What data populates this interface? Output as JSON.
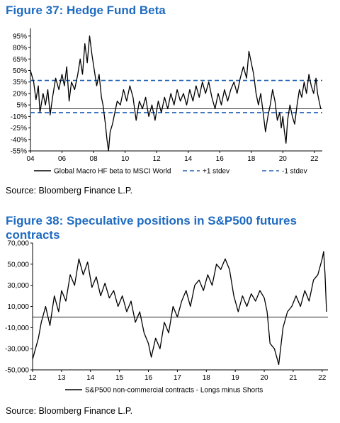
{
  "figure1": {
    "title": "Figure 37: Hedge Fund Beta",
    "source": "Source: Bloomberg Finance L.P."
  },
  "figure2": {
    "title": "Figure 38: Speculative positions in S&P500 futures contracts",
    "source": "Source: Bloomberg Finance L.P."
  },
  "colors": {
    "title": "#1f6bc0",
    "series": "#000000",
    "stdev": "#1f5fb0"
  },
  "chart_data": [
    {
      "type": "line",
      "title": "",
      "y_tick_labels": [
        "95%",
        "80%",
        "65%",
        "50%",
        "35%",
        "20%",
        "5%",
        "-10%",
        "-25%",
        "-40%",
        "-55%"
      ],
      "x_tick_labels": [
        "04",
        "06",
        "08",
        "10",
        "12",
        "14",
        "16",
        "18",
        "20",
        "22"
      ],
      "ylim": [
        -55,
        105
      ],
      "xlim": [
        2004,
        2022.5
      ],
      "hlines": [
        {
          "name": "+1 stdev",
          "value": 37
        },
        {
          "name": "-1 stdev",
          "value": -5
        },
        {
          "name": "",
          "value": 0
        }
      ],
      "legend": [
        "Global Macro HF beta to MSCI World",
        "+1 stdev",
        "-1 stdev"
      ],
      "legend_position": "bottom",
      "series": [
        {
          "name": "Global Macro HF beta to MSCI World",
          "points": [
            [
              2004.0,
              50
            ],
            [
              2004.2,
              35
            ],
            [
              2004.35,
              12
            ],
            [
              2004.5,
              30
            ],
            [
              2004.6,
              -5
            ],
            [
              2004.8,
              20
            ],
            [
              2004.95,
              5
            ],
            [
              2005.1,
              25
            ],
            [
              2005.25,
              -8
            ],
            [
              2005.4,
              15
            ],
            [
              2005.6,
              40
            ],
            [
              2005.8,
              25
            ],
            [
              2006.0,
              45
            ],
            [
              2006.15,
              30
            ],
            [
              2006.3,
              55
            ],
            [
              2006.45,
              10
            ],
            [
              2006.6,
              35
            ],
            [
              2006.8,
              25
            ],
            [
              2007.0,
              45
            ],
            [
              2007.15,
              65
            ],
            [
              2007.3,
              45
            ],
            [
              2007.45,
              85
            ],
            [
              2007.6,
              60
            ],
            [
              2007.75,
              95
            ],
            [
              2007.9,
              70
            ],
            [
              2008.05,
              50
            ],
            [
              2008.2,
              30
            ],
            [
              2008.35,
              45
            ],
            [
              2008.5,
              15
            ],
            [
              2008.6,
              5
            ],
            [
              2008.75,
              -20
            ],
            [
              2008.85,
              -40
            ],
            [
              2008.95,
              -55
            ],
            [
              2009.05,
              -30
            ],
            [
              2009.2,
              -20
            ],
            [
              2009.35,
              -5
            ],
            [
              2009.5,
              10
            ],
            [
              2009.7,
              5
            ],
            [
              2009.9,
              25
            ],
            [
              2010.1,
              10
            ],
            [
              2010.3,
              30
            ],
            [
              2010.5,
              15
            ],
            [
              2010.7,
              -15
            ],
            [
              2010.9,
              10
            ],
            [
              2011.1,
              0
            ],
            [
              2011.3,
              15
            ],
            [
              2011.5,
              -10
            ],
            [
              2011.7,
              5
            ],
            [
              2011.9,
              -15
            ],
            [
              2012.1,
              10
            ],
            [
              2012.3,
              -5
            ],
            [
              2012.5,
              15
            ],
            [
              2012.7,
              0
            ],
            [
              2012.9,
              20
            ],
            [
              2013.1,
              5
            ],
            [
              2013.3,
              25
            ],
            [
              2013.5,
              10
            ],
            [
              2013.7,
              20
            ],
            [
              2013.9,
              5
            ],
            [
              2014.1,
              25
            ],
            [
              2014.3,
              10
            ],
            [
              2014.5,
              30
            ],
            [
              2014.7,
              15
            ],
            [
              2014.9,
              35
            ],
            [
              2015.1,
              20
            ],
            [
              2015.3,
              35
            ],
            [
              2015.5,
              15
            ],
            [
              2015.7,
              0
            ],
            [
              2015.9,
              20
            ],
            [
              2016.1,
              5
            ],
            [
              2016.3,
              25
            ],
            [
              2016.5,
              10
            ],
            [
              2016.7,
              25
            ],
            [
              2016.9,
              35
            ],
            [
              2017.1,
              20
            ],
            [
              2017.3,
              40
            ],
            [
              2017.5,
              55
            ],
            [
              2017.7,
              40
            ],
            [
              2017.85,
              75
            ],
            [
              2018.0,
              60
            ],
            [
              2018.15,
              45
            ],
            [
              2018.3,
              20
            ],
            [
              2018.45,
              5
            ],
            [
              2018.6,
              20
            ],
            [
              2018.75,
              -5
            ],
            [
              2018.9,
              -30
            ],
            [
              2019.05,
              -10
            ],
            [
              2019.2,
              5
            ],
            [
              2019.35,
              25
            ],
            [
              2019.5,
              10
            ],
            [
              2019.65,
              -15
            ],
            [
              2019.8,
              -5
            ],
            [
              2019.9,
              -25
            ],
            [
              2020.0,
              -10
            ],
            [
              2020.1,
              -30
            ],
            [
              2020.2,
              -45
            ],
            [
              2020.3,
              -15
            ],
            [
              2020.45,
              5
            ],
            [
              2020.6,
              -10
            ],
            [
              2020.75,
              -20
            ],
            [
              2020.9,
              5
            ],
            [
              2021.05,
              25
            ],
            [
              2021.2,
              15
            ],
            [
              2021.35,
              35
            ],
            [
              2021.5,
              20
            ],
            [
              2021.65,
              45
            ],
            [
              2021.8,
              30
            ],
            [
              2021.95,
              20
            ],
            [
              2022.1,
              40
            ],
            [
              2022.2,
              20
            ],
            [
              2022.3,
              10
            ],
            [
              2022.4,
              0
            ]
          ]
        }
      ]
    },
    {
      "type": "line",
      "title": "",
      "y_tick_labels": [
        "70,000",
        "50,000",
        "30,000",
        "10,000",
        "-10,000",
        "-30,000",
        "-50,000"
      ],
      "x_tick_labels": [
        "12",
        "13",
        "14",
        "15",
        "16",
        "17",
        "18",
        "19",
        "20",
        "21",
        "22"
      ],
      "ylim": [
        -50000,
        70000
      ],
      "xlim": [
        2012,
        2022.2
      ],
      "hlines": [
        {
          "name": "",
          "value": 0
        }
      ],
      "legend": [
        "S&P500 non-commercial contracts - Longs minus Shorts"
      ],
      "legend_position": "bottom",
      "series": [
        {
          "name": "S&P500 non-commercial contracts - Longs minus Shorts",
          "points": [
            [
              2012.0,
              -40000
            ],
            [
              2012.1,
              -30000
            ],
            [
              2012.2,
              -20000
            ],
            [
              2012.3,
              -5000
            ],
            [
              2012.45,
              10000
            ],
            [
              2012.6,
              -8000
            ],
            [
              2012.75,
              20000
            ],
            [
              2012.9,
              5000
            ],
            [
              2013.0,
              25000
            ],
            [
              2013.15,
              15000
            ],
            [
              2013.3,
              40000
            ],
            [
              2013.45,
              30000
            ],
            [
              2013.6,
              55000
            ],
            [
              2013.75,
              40000
            ],
            [
              2013.9,
              52000
            ],
            [
              2014.05,
              28000
            ],
            [
              2014.2,
              38000
            ],
            [
              2014.35,
              20000
            ],
            [
              2014.5,
              32000
            ],
            [
              2014.65,
              18000
            ],
            [
              2014.8,
              25000
            ],
            [
              2014.95,
              10000
            ],
            [
              2015.1,
              20000
            ],
            [
              2015.25,
              5000
            ],
            [
              2015.4,
              15000
            ],
            [
              2015.55,
              -5000
            ],
            [
              2015.7,
              5000
            ],
            [
              2015.85,
              -15000
            ],
            [
              2016.0,
              -25000
            ],
            [
              2016.1,
              -38000
            ],
            [
              2016.25,
              -20000
            ],
            [
              2016.4,
              -30000
            ],
            [
              2016.55,
              -5000
            ],
            [
              2016.7,
              -15000
            ],
            [
              2016.85,
              10000
            ],
            [
              2017.0,
              0
            ],
            [
              2017.15,
              15000
            ],
            [
              2017.3,
              25000
            ],
            [
              2017.45,
              10000
            ],
            [
              2017.6,
              30000
            ],
            [
              2017.75,
              35000
            ],
            [
              2017.9,
              25000
            ],
            [
              2018.05,
              40000
            ],
            [
              2018.2,
              30000
            ],
            [
              2018.35,
              50000
            ],
            [
              2018.5,
              45000
            ],
            [
              2018.65,
              55000
            ],
            [
              2018.8,
              45000
            ],
            [
              2018.95,
              20000
            ],
            [
              2019.1,
              5000
            ],
            [
              2019.25,
              20000
            ],
            [
              2019.4,
              10000
            ],
            [
              2019.55,
              22000
            ],
            [
              2019.7,
              15000
            ],
            [
              2019.85,
              25000
            ],
            [
              2020.0,
              18000
            ],
            [
              2020.1,
              5000
            ],
            [
              2020.2,
              -25000
            ],
            [
              2020.35,
              -30000
            ],
            [
              2020.5,
              -45000
            ],
            [
              2020.65,
              -10000
            ],
            [
              2020.8,
              5000
            ],
            [
              2020.95,
              10000
            ],
            [
              2021.1,
              20000
            ],
            [
              2021.25,
              10000
            ],
            [
              2021.4,
              25000
            ],
            [
              2021.55,
              15000
            ],
            [
              2021.7,
              35000
            ],
            [
              2021.85,
              40000
            ],
            [
              2022.0,
              55000
            ],
            [
              2022.05,
              62000
            ],
            [
              2022.1,
              40000
            ],
            [
              2022.15,
              5000
            ]
          ]
        }
      ]
    }
  ]
}
